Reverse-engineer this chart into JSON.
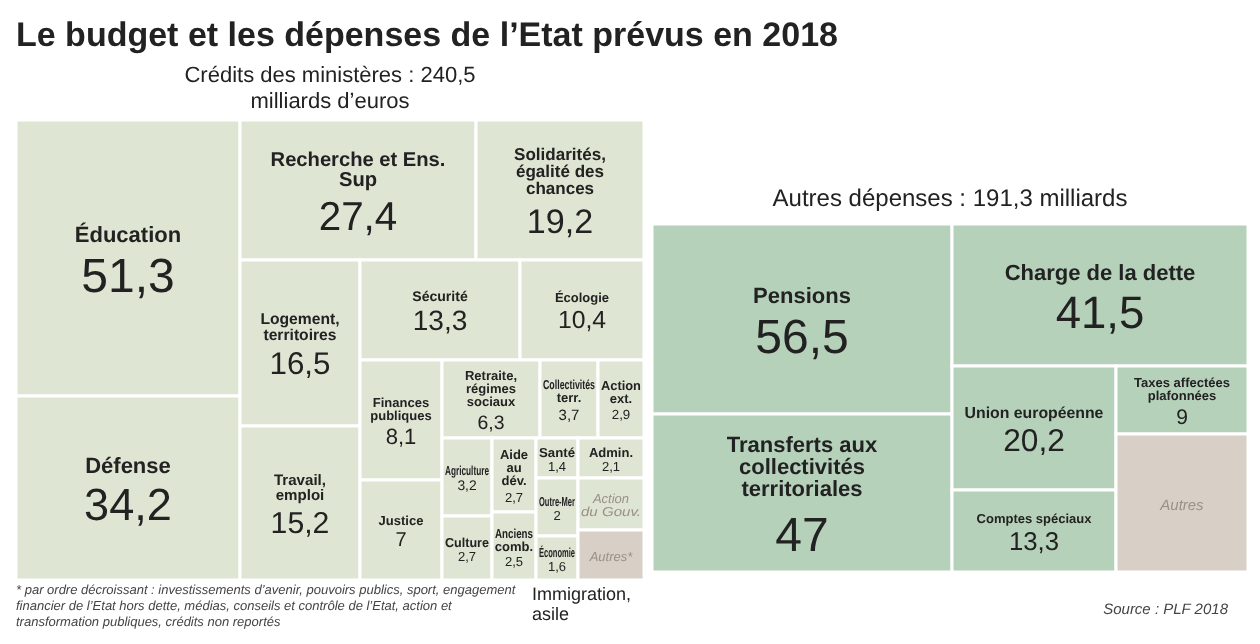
{
  "chart_data": [
    {
      "type": "other",
      "title": "Le budget et les dépenses de l’Etat prévus en 2018",
      "subtitle": "Crédits des ministères : 240,5 milliards d’euros",
      "categories": [
        "Éducation",
        "Défense",
        "Recherche et Ens. Sup",
        "Solidarités, égalité des chances",
        "Logement, territoires",
        "Travail, emploi",
        "Sécurité",
        "Écologie",
        "Finances publiques",
        "Justice",
        "Retraite, régimes sociaux",
        "Collectivités terr.",
        "Action ext.",
        "Agriculture",
        "Culture",
        "Aide au dév.",
        "Anciens comb.",
        "Santé",
        "Admin.",
        "Outre-Mer",
        "Économie",
        "Action du Gouv.",
        "Autres*"
      ],
      "values": [
        51.3,
        34.2,
        27.4,
        19.2,
        16.5,
        15.2,
        13.3,
        10.4,
        8.1,
        7,
        6.3,
        3.7,
        2.9,
        3.2,
        2.7,
        2.7,
        2.5,
        1.4,
        2.1,
        2,
        1.6,
        null,
        null
      ],
      "value_labels": [
        "51,3",
        "34,2",
        "27,4",
        "19,2",
        "16,5",
        "15,2",
        "13,3",
        "10,4",
        "8,1",
        "7",
        "6,3",
        "3,7",
        "2,9",
        "3,2",
        "2,7",
        "2,7",
        "2,5",
        "1,4",
        "2,1",
        "2",
        "1,6",
        null,
        null
      ],
      "colors": [
        "#dfe5d3",
        "#dfe5d3",
        "#dfe5d3",
        "#dfe5d3",
        "#dfe5d3",
        "#dfe5d3",
        "#dfe5d3",
        "#dfe5d3",
        "#dfe5d3",
        "#dfe5d3",
        "#dfe5d3",
        "#dfe5d3",
        "#dfe5d3",
        "#dfe5d3",
        "#dfe5d3",
        "#dfe5d3",
        "#dfe5d3",
        "#dfe5d3",
        "#dfe5d3",
        "#dfe5d3",
        "#dfe5d3",
        "#dfe5d3",
        "#d8cfc6"
      ],
      "annotations": [
        "Immigration, asile",
        "* par ordre décroissant : investissements d’avenir, pouvoirs publics, sport, engagement financier de l’Etat hors dette, médias, conseils et contrôle de l’Etat, action et transformation publiques, crédits non reportés"
      ]
    },
    {
      "type": "other",
      "subtitle": "Autres dépenses : 191,3 milliards",
      "categories": [
        "Pensions",
        "Transferts aux collectivités territoriales",
        "Charge de la dette",
        "Union européenne",
        "Comptes spéciaux",
        "Taxes affectées plafonnées",
        "Autres"
      ],
      "values": [
        56.5,
        47,
        41.5,
        20.2,
        13.3,
        9,
        null
      ],
      "value_labels": [
        "56,5",
        "47",
        "41,5",
        "20,2",
        "13,3",
        "9",
        null
      ],
      "colors": [
        "#b6d1ba",
        "#b6d1ba",
        "#b6d1ba",
        "#b6d1ba",
        "#b6d1ba",
        "#b6d1ba",
        "#d8cfc6"
      ],
      "annotations": [
        "Source : PLF 2018"
      ]
    }
  ]
}
